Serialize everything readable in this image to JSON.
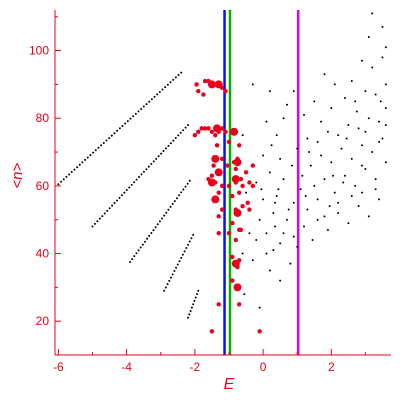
{
  "chart_data": {
    "type": "scatter",
    "title": "",
    "xlabel": "E",
    "ylabel": "<n>",
    "xlim": [
      -6.1,
      3.75
    ],
    "ylim": [
      10,
      112
    ],
    "grid": false,
    "legend": "none",
    "x_ticks": [
      -6,
      -4,
      -2,
      0,
      2
    ],
    "x_tick_labels": [
      "-6",
      "-4",
      "-2",
      "0",
      "2"
    ],
    "y_ticks": [
      20,
      40,
      60,
      80,
      100
    ],
    "y_tick_labels": [
      "20",
      "40",
      "60",
      "80",
      "100"
    ],
    "colors": {
      "axes": "#e8001c",
      "labels": "#e8001c",
      "black_points": "#000000",
      "red_points": "#e8001c",
      "line_blue": "#0010ff",
      "line_green": "#00b000",
      "line_magenta": "#e000e0"
    },
    "vertical_lines": [
      {
        "x": -1.13,
        "color": "#0010ff"
      },
      {
        "x": -0.97,
        "color": "#00b000"
      },
      {
        "x": 1.03,
        "color": "#e000e0"
      }
    ],
    "black_lines": [
      {
        "from": [
          -6.0,
          60.5
        ],
        "to": [
          -2.4,
          93.5
        ]
      },
      {
        "from": [
          -5.0,
          48.0
        ],
        "to": [
          -2.2,
          78.0
        ]
      },
      {
        "from": [
          -3.9,
          37.5
        ],
        "to": [
          -2.15,
          61.5
        ]
      },
      {
        "from": [
          -2.9,
          29.0
        ],
        "to": [
          -2.05,
          45.5
        ]
      },
      {
        "from": [
          -2.2,
          21.0
        ],
        "to": [
          -1.9,
          29.0
        ]
      }
    ],
    "black_scatter": [
      [
        -0.55,
        28
      ],
      [
        -0.1,
        24
      ],
      [
        -0.3,
        38
      ],
      [
        -0.6,
        40
      ],
      [
        0.2,
        35
      ],
      [
        0.5,
        32
      ],
      [
        0.8,
        37
      ],
      [
        0.3,
        41
      ],
      [
        -0.2,
        44
      ],
      [
        0.1,
        46
      ],
      [
        0.5,
        43
      ],
      [
        0.9,
        45
      ],
      [
        1.2,
        48
      ],
      [
        0.7,
        50
      ],
      [
        0.3,
        52
      ],
      [
        -0.1,
        50
      ],
      [
        -0.4,
        53
      ],
      [
        0.0,
        56
      ],
      [
        0.4,
        57
      ],
      [
        0.9,
        55
      ],
      [
        1.3,
        53
      ],
      [
        1.6,
        50
      ],
      [
        1.9,
        47
      ],
      [
        2.2,
        52
      ],
      [
        2.5,
        49
      ],
      [
        2.8,
        54
      ],
      [
        3.1,
        51
      ],
      [
        3.4,
        56
      ],
      [
        1.1,
        59
      ],
      [
        1.5,
        60
      ],
      [
        1.8,
        62
      ],
      [
        2.1,
        58
      ],
      [
        2.4,
        63
      ],
      [
        2.7,
        60
      ],
      [
        3.0,
        65
      ],
      [
        3.3,
        62
      ],
      [
        3.6,
        67
      ],
      [
        0.6,
        62
      ],
      [
        0.2,
        64
      ],
      [
        -0.2,
        61
      ],
      [
        -0.5,
        58
      ],
      [
        1.4,
        66
      ],
      [
        1.7,
        69
      ],
      [
        2.0,
        67
      ],
      [
        2.3,
        71
      ],
      [
        2.6,
        68
      ],
      [
        2.9,
        72
      ],
      [
        3.2,
        70
      ],
      [
        3.5,
        74
      ],
      [
        1.0,
        71
      ],
      [
        1.3,
        74
      ],
      [
        1.6,
        73
      ],
      [
        1.9,
        76
      ],
      [
        2.2,
        75
      ],
      [
        2.5,
        78
      ],
      [
        2.8,
        77
      ],
      [
        3.1,
        80
      ],
      [
        3.4,
        79
      ],
      [
        3.6,
        83
      ],
      [
        0.4,
        75
      ],
      [
        0.1,
        79
      ],
      [
        0.7,
        84
      ],
      [
        1.2,
        81
      ],
      [
        1.5,
        85
      ],
      [
        2.0,
        83
      ],
      [
        2.4,
        86
      ],
      [
        2.7,
        85
      ],
      [
        3.0,
        88
      ],
      [
        3.3,
        87
      ],
      [
        3.6,
        90
      ],
      [
        0.2,
        88
      ],
      [
        0.9,
        88
      ],
      [
        1.8,
        93
      ],
      [
        2.6,
        91
      ],
      [
        3.2,
        95
      ],
      [
        3.5,
        98
      ],
      [
        3.6,
        101
      ],
      [
        2.9,
        97
      ],
      [
        3.1,
        104
      ],
      [
        3.5,
        107
      ],
      [
        3.2,
        111
      ],
      [
        0.0,
        69
      ],
      [
        -0.3,
        66
      ],
      [
        0.5,
        68
      ],
      [
        1.6,
        56
      ],
      [
        2.2,
        55
      ],
      [
        2.9,
        58
      ],
      [
        3.3,
        59
      ],
      [
        1.0,
        42
      ],
      [
        0.6,
        46
      ],
      [
        0.1,
        40
      ],
      [
        -0.4,
        46
      ],
      [
        0.35,
        48
      ],
      [
        1.45,
        44
      ],
      [
        1.8,
        51
      ],
      [
        2.35,
        61
      ],
      [
        2.9,
        66
      ],
      [
        3.4,
        73
      ],
      [
        3.6,
        78
      ],
      [
        1.15,
        63
      ],
      [
        0.85,
        66
      ],
      [
        0.45,
        59
      ],
      [
        0.25,
        72
      ],
      [
        -0.6,
        75
      ],
      [
        -0.3,
        90
      ],
      [
        0.6,
        80
      ],
      [
        2.1,
        90
      ],
      [
        2.75,
        82
      ],
      [
        3.45,
        85
      ],
      [
        3.0,
        76
      ],
      [
        1.7,
        79
      ],
      [
        1.35,
        70
      ],
      [
        2.45,
        74
      ],
      [
        2.05,
        63
      ],
      [
        2.6,
        57
      ],
      [
        1.95,
        54
      ],
      [
        1.25,
        57
      ],
      [
        0.75,
        53
      ],
      [
        0.35,
        55
      ],
      [
        -0.05,
        59
      ]
    ],
    "red_points": [
      [
        -1.95,
        90
      ],
      [
        -1.7,
        91
      ],
      [
        -1.6,
        91
      ],
      [
        -1.5,
        90
      ],
      [
        -1.4,
        90
      ],
      [
        -1.3,
        90
      ],
      [
        -1.2,
        89
      ],
      [
        -1.1,
        88
      ],
      [
        -1.9,
        88
      ],
      [
        -1.75,
        87
      ],
      [
        -2.0,
        75
      ],
      [
        -1.9,
        76
      ],
      [
        -1.8,
        77
      ],
      [
        -1.7,
        77
      ],
      [
        -1.6,
        77
      ],
      [
        -1.5,
        76
      ],
      [
        -1.4,
        75
      ],
      [
        -1.3,
        76
      ],
      [
        -1.2,
        77
      ],
      [
        -1.1,
        76
      ],
      [
        -0.9,
        76
      ],
      [
        -0.8,
        76
      ],
      [
        -1.35,
        72
      ],
      [
        -1.0,
        73
      ],
      [
        -0.7,
        72
      ],
      [
        -1.45,
        66
      ],
      [
        -1.2,
        68
      ],
      [
        -0.75,
        68
      ],
      [
        -0.85,
        67
      ],
      [
        -1.5,
        63
      ],
      [
        -1.05,
        66
      ],
      [
        -0.8,
        65
      ],
      [
        -0.5,
        64
      ],
      [
        -0.3,
        66
      ],
      [
        -0.65,
        62
      ],
      [
        -1.6,
        62
      ],
      [
        -1.5,
        61
      ],
      [
        -1.4,
        61
      ],
      [
        -1.2,
        60
      ],
      [
        -1.0,
        60
      ],
      [
        -0.8,
        61
      ],
      [
        -0.6,
        60
      ],
      [
        -0.4,
        61
      ],
      [
        -0.3,
        60
      ],
      [
        -1.3,
        58
      ],
      [
        -0.9,
        57
      ],
      [
        -0.7,
        58
      ],
      [
        -0.45,
        55
      ],
      [
        -1.4,
        56
      ],
      [
        -1.2,
        53
      ],
      [
        -0.8,
        53
      ],
      [
        -0.6,
        54
      ],
      [
        -0.4,
        53
      ],
      [
        -1.3,
        51
      ],
      [
        -0.9,
        49
      ],
      [
        -1.0,
        46
      ],
      [
        -0.8,
        44
      ],
      [
        -0.7,
        38
      ],
      [
        -0.8,
        37
      ],
      [
        -0.75,
        36
      ],
      [
        -1.3,
        46
      ],
      [
        -0.65,
        47
      ],
      [
        -0.9,
        39
      ],
      [
        -0.9,
        32
      ],
      [
        -1.3,
        25
      ],
      [
        -0.7,
        25
      ],
      [
        -1.5,
        17
      ],
      [
        -0.1,
        17
      ],
      [
        -0.7,
        47
      ]
    ],
    "red_big_points": [
      [
        -1.3,
        90
      ],
      [
        -1.5,
        90
      ],
      [
        -1.35,
        77
      ],
      [
        -1.4,
        68
      ],
      [
        -0.85,
        76
      ],
      [
        -0.75,
        67
      ],
      [
        -1.5,
        61
      ],
      [
        -1.4,
        56
      ],
      [
        -0.75,
        52
      ],
      [
        -0.8,
        37
      ],
      [
        -0.75,
        30
      ],
      [
        -1.3,
        64
      ],
      [
        -0.8,
        62
      ]
    ]
  }
}
